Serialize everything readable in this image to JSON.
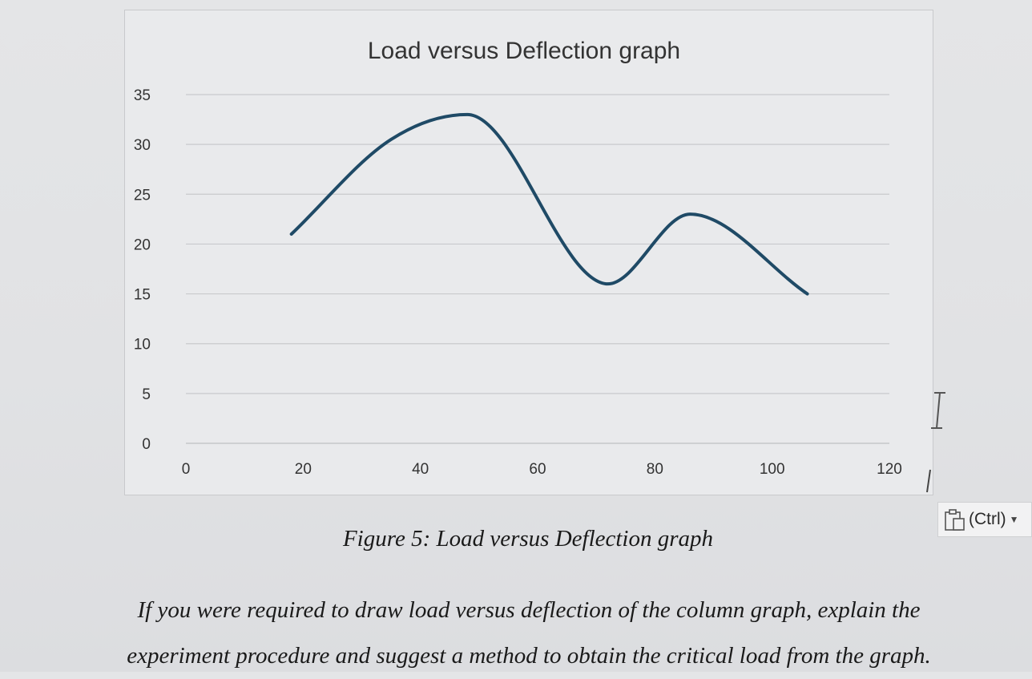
{
  "chart_data": {
    "type": "line",
    "title": "Load versus Deflection graph",
    "xlabel": "",
    "ylabel": "",
    "xlim": [
      0,
      120
    ],
    "ylim": [
      0,
      35
    ],
    "x_ticks": [
      "0",
      "20",
      "40",
      "60",
      "80",
      "100",
      "120"
    ],
    "y_ticks": [
      "0",
      "5",
      "10",
      "15",
      "20",
      "25",
      "30",
      "35"
    ],
    "grid": "horizontal",
    "smooth": true,
    "series": [
      {
        "x": [
          18,
          35,
          48,
          72,
          86,
          106
        ],
        "y": [
          21,
          30.5,
          33,
          16,
          23,
          15
        ],
        "color": "#1f4a66"
      }
    ]
  },
  "caption": "Figure 5: Load versus Deflection graph",
  "question": {
    "line1": "If you were required to draw load versus deflection of the column graph, explain the",
    "line2": "experiment procedure and suggest a method to obtain the critical load from the graph."
  },
  "paste_options": {
    "label": "(Ctrl)",
    "icon": "clipboard-icon"
  }
}
